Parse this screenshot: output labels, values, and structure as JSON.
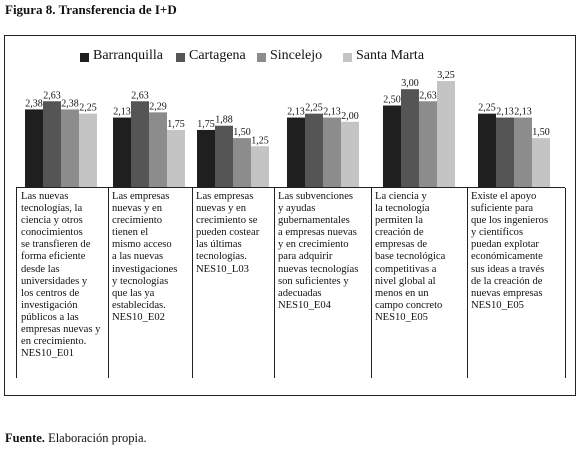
{
  "figure_title": "Figura 8. Transferencia de I+D",
  "source_label": "Fuente.",
  "source_text": " Elaboración propia.",
  "chart_data": {
    "type": "bar",
    "series": [
      {
        "name": "Barranquilla",
        "color": "#1f1f1f",
        "values": [
          2.38,
          2.13,
          1.75,
          2.13,
          2.5,
          2.25
        ]
      },
      {
        "name": "Cartagena",
        "color": "#555555",
        "values": [
          2.63,
          2.63,
          1.88,
          2.25,
          3.0,
          2.13
        ]
      },
      {
        "name": "Sincelejo",
        "color": "#8c8c8c",
        "values": [
          2.38,
          2.29,
          1.5,
          2.13,
          2.63,
          2.13
        ]
      },
      {
        "name": "Santa Marta",
        "color": "#c4c4c4",
        "values": [
          2.25,
          1.75,
          1.25,
          2.0,
          3.25,
          1.5
        ]
      }
    ],
    "value_labels": [
      [
        "2,38",
        "2,63",
        "2,38",
        "2,25"
      ],
      [
        "2,13",
        "2,63",
        "2,29",
        "1,75"
      ],
      [
        "1,75",
        "1,88",
        "1,50",
        "1,25"
      ],
      [
        "2,13",
        "2,25",
        "2,13",
        "2,00"
      ],
      [
        "2,50",
        "3,00",
        "2,63",
        "3,25"
      ],
      [
        "2,25",
        "2,13",
        "2,13",
        "1,50"
      ]
    ],
    "categories": [
      "Las nuevas tecnologías, la ciencia y otros conocimientos se transfieren de forma eficiente desde las universidades y los centros de investigación públicos a las empresas nuevas y en crecimiento. NES10_E01",
      "Las empresas nuevas y en crecimiento tienen el mismo acceso a las nuevas investigaciones y tecnologías que las ya establecidas. NES10_E02",
      "Las empresas nuevas y en crecimiento se pueden costear las últimas tecnologías. NES10_L03",
      "Las subvenciones y ayudas gubernamentales a empresas nuevas y en crecimiento para adquirir nuevas tecnologías son suficientes y adecuadas NES10_E04",
      "La ciencia y la tecnología permiten la creación de empresas de base tecnológica competitivas a nivel global al menos en un campo concreto NES10_E05",
      "Existe el apoyo suficiente para que los ingenieros y científicos puedan explotar económicamente sus ideas a través de la creación de nuevas empresas NES10_E05"
    ],
    "category_lines": [
      [
        "Las nuevas",
        "tecnologías, la",
        "ciencia y otros",
        "conocimientos",
        "se transfieren de",
        "forma eficiente",
        "desde las",
        "universidades y",
        "los centros de",
        "investigación",
        "públicos a las",
        "empresas nuevas y",
        "en crecimiento.",
        "NES10_E01"
      ],
      [
        "Las empresas",
        "nuevas y en",
        "crecimiento",
        "tienen el",
        "mismo acceso",
        "a las nuevas",
        "investigaciones",
        "y tecnologías",
        "que las ya",
        "establecidas.",
        "NES10_E02"
      ],
      [
        "Las empresas",
        "nuevas y en",
        "crecimiento se",
        "pueden costear",
        "las últimas",
        "tecnologías.",
        "NES10_L03"
      ],
      [
        "Las subvenciones",
        "y ayudas",
        "gubernamentales",
        "a empresas nuevas",
        "y en crecimiento",
        "para adquirir",
        "nuevas tecnologías",
        "son suficientes y",
        "adecuadas",
        "NES10_E04"
      ],
      [
        "La ciencia y",
        "la tecnología",
        "permiten la",
        "creación de",
        "empresas de",
        "base tecnológica",
        "competitivas a",
        "nivel global al",
        "menos en un",
        "campo concreto",
        "NES10_E05"
      ],
      [
        "Existe el apoyo",
        "suficiente para",
        "que los ingenieros",
        "y científicos",
        "puedan explotar",
        "económicamente",
        "sus ideas a través",
        "de la creación de",
        "nuevas empresas",
        "NES10_E05"
      ]
    ],
    "ylim": [
      0,
      3.5
    ],
    "grid": false,
    "legend_position": "top"
  }
}
